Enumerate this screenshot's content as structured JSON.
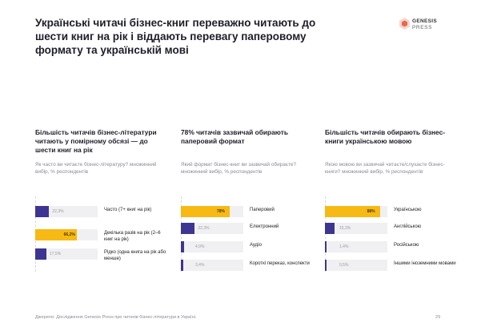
{
  "title": "Українські читачі бізнес-книг переважно читають до шести книг на рік і віддають перевагу паперовому формату та українській мові",
  "logo": {
    "name": "GENESIS",
    "sub": "PRESS"
  },
  "colors": {
    "purple": "#3d3591",
    "yellow": "#f7b913",
    "track": "#f0f0f2"
  },
  "chart_data": [
    {
      "type": "bar",
      "heading": "Більшість читачів бізнес-літератури читають у помірному обсязі — до шести книг на рік",
      "question": "Як часто ви читаєте бізнес-літературу? множинний вибір, % респондентів",
      "categories": [
        "Часто (7+ книг на рік)",
        "Декілька разів на рік (2–6 книг на рік)",
        "Рідко (одна книга на рік або менше)"
      ],
      "values": [
        22.3,
        66.2,
        17.5
      ],
      "value_labels": [
        "22,3%",
        "66,2%",
        "17,5%"
      ],
      "highlight": 1,
      "xlim": [
        0,
        100
      ]
    },
    {
      "type": "bar",
      "heading": "78% читачів зазвичай обирають паперовий формат",
      "question": "Який формат бізнес-книг ви зазвичай обираєте? множинний вибір, % респондентів",
      "categories": [
        "Паперовий",
        "Електронний",
        "Аудіо",
        "Короткі переказ, конспекти"
      ],
      "values": [
        78,
        22.3,
        4.9,
        3.4
      ],
      "value_labels": [
        "78%",
        "22,3%",
        "4,9%",
        "3,4%"
      ],
      "highlight": 0,
      "xlim": [
        0,
        100
      ]
    },
    {
      "type": "bar",
      "heading": "Більшість читачів обирають бізнес-книги українською мовою",
      "question": "Якою мовою ви зазвичай читаєте/слухаєте бізнес-книги? множинний вибір, % респондентів",
      "categories": [
        "Українською",
        "Англійською",
        "Російською",
        "Іншими іноземними мовами"
      ],
      "values": [
        88,
        15.3,
        1.4,
        0.5
      ],
      "value_labels": [
        "88%",
        "15,3%",
        "1,4%",
        "0,5%"
      ],
      "highlight": 0,
      "xlim": [
        0,
        100
      ]
    }
  ],
  "footer": "Джерело: Дослідження Genesis Press про читачів бізнес-літератури в Україні.",
  "page_number": "29"
}
